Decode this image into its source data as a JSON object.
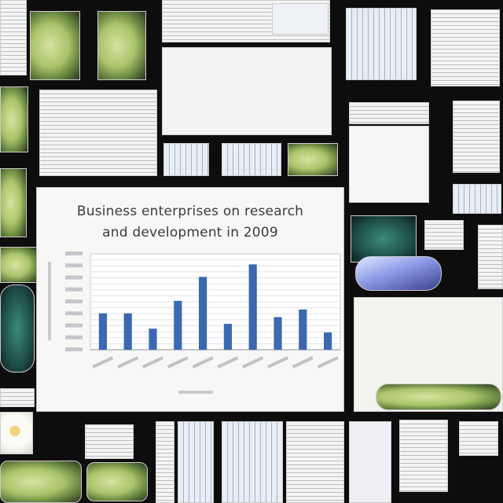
{
  "chart_data": {
    "type": "bar",
    "title": [
      "Business enterprises on research",
      "and development in 2009"
    ],
    "xlabel": "",
    "ylabel": "",
    "ylim": [
      0,
      100
    ],
    "categories": [
      "",
      "",
      "",
      "",
      "",
      "",
      "",
      "",
      "",
      ""
    ],
    "values": [
      38,
      38,
      22,
      51,
      76,
      27,
      89,
      34,
      42,
      18
    ],
    "bar_color": "#3b68b0",
    "grid": true
  }
}
